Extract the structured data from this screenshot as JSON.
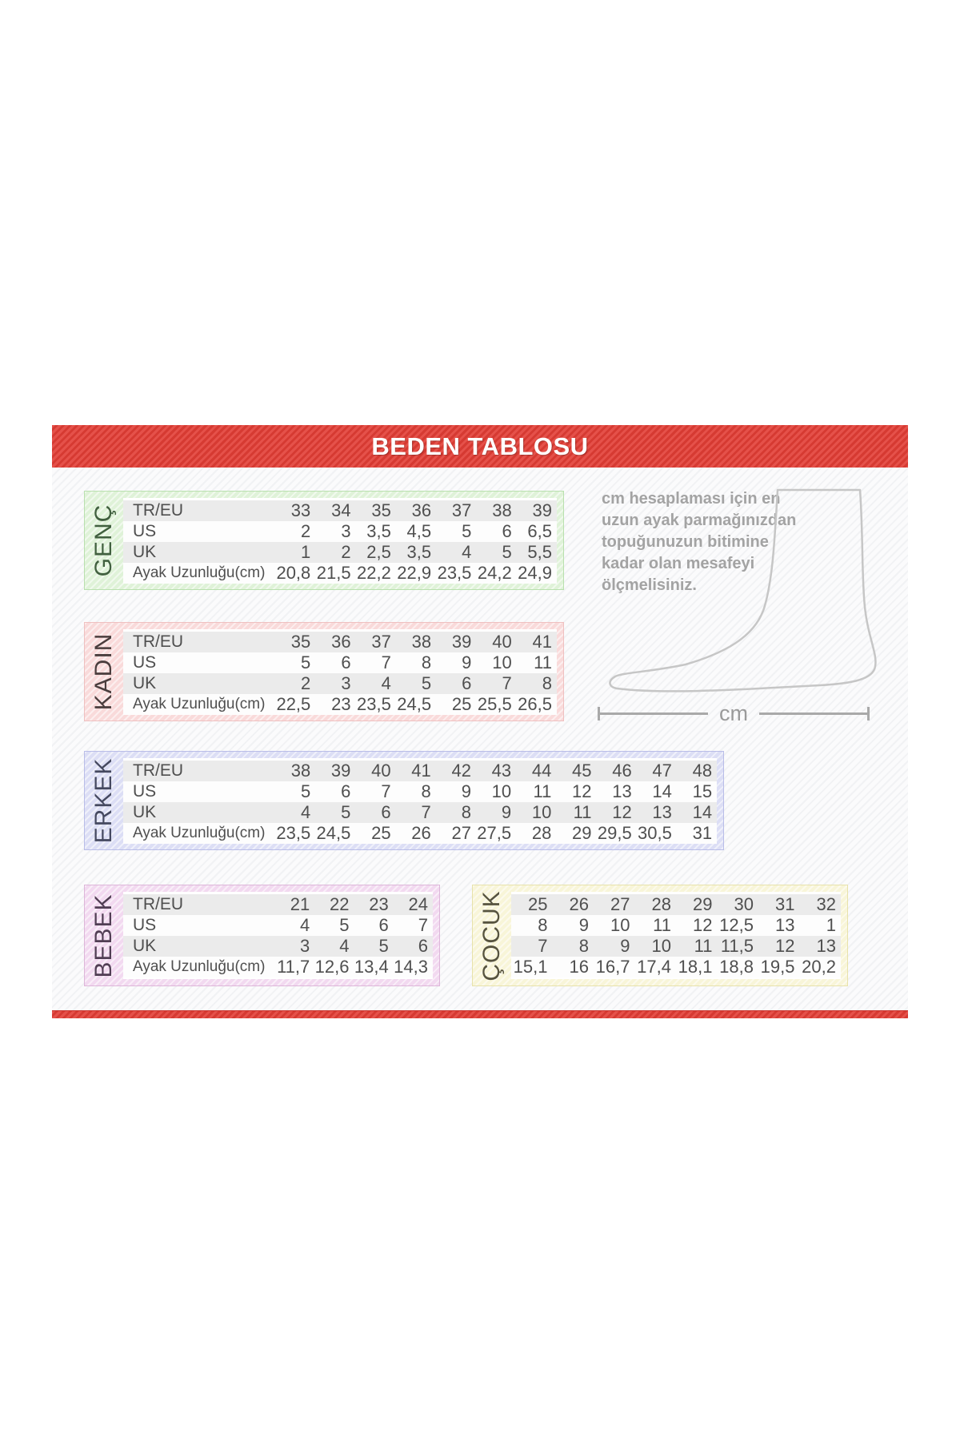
{
  "title": "BEDEN TABLOSU",
  "measure_label": "cm",
  "note_lines": [
    "cm hesaplaması için en",
    "uzun ayak parmağınızdan",
    "topuğunuzun bitimine",
    "kadar olan mesafeyi",
    "ölçmelisiniz."
  ],
  "row_labels": [
    "TR/EU",
    "US",
    "UK",
    "Ayak Uzunluğu(cm)"
  ],
  "colors": {
    "header_red": "#e23d35",
    "table_text": "#4f4f4f",
    "note_gray": "#a3a3a3",
    "foot_outline": "#c6c6c6"
  },
  "tables": [
    {
      "id": "genc",
      "label": "GENÇ",
      "has_row_labels": true,
      "band_color": "#dff2d8",
      "border_color": "#b9e0ae",
      "label_color": "#41603f",
      "rows": [
        [
          "33",
          "34",
          "35",
          "36",
          "37",
          "38",
          "39"
        ],
        [
          "2",
          "3",
          "3,5",
          "4,5",
          "5",
          "6",
          "6,5"
        ],
        [
          "1",
          "2",
          "2,5",
          "3,5",
          "4",
          "5",
          "5,5"
        ],
        [
          "20,8",
          "21,5",
          "22,2",
          "22,9",
          "23,5",
          "24,2",
          "24,9"
        ]
      ]
    },
    {
      "id": "kadin",
      "label": "KADIN",
      "has_row_labels": true,
      "band_color": "#f9dada",
      "border_color": "#efc0c0",
      "label_color": "#4a3d3d",
      "rows": [
        [
          "35",
          "36",
          "37",
          "38",
          "39",
          "40",
          "41"
        ],
        [
          "5",
          "6",
          "7",
          "8",
          "9",
          "10",
          "11"
        ],
        [
          "2",
          "3",
          "4",
          "5",
          "6",
          "7",
          "8"
        ],
        [
          "22,5",
          "23",
          "23,5",
          "24,5",
          "25",
          "25,5",
          "26,5"
        ]
      ]
    },
    {
      "id": "erkek",
      "label": "ERKEK",
      "has_row_labels": true,
      "band_color": "#dcdef5",
      "border_color": "#b9bde8",
      "label_color": "#454960",
      "rows": [
        [
          "38",
          "39",
          "40",
          "41",
          "42",
          "43",
          "44",
          "45",
          "46",
          "47",
          "48"
        ],
        [
          "5",
          "6",
          "7",
          "8",
          "9",
          "10",
          "11",
          "12",
          "13",
          "14",
          "15"
        ],
        [
          "4",
          "5",
          "6",
          "7",
          "8",
          "9",
          "10",
          "11",
          "12",
          "13",
          "14"
        ],
        [
          "23,5",
          "24,5",
          "25",
          "26",
          "27",
          "27,5",
          "28",
          "29",
          "29,5",
          "30,5",
          "31"
        ]
      ]
    },
    {
      "id": "bebek",
      "label": "BEBEK",
      "has_row_labels": true,
      "band_color": "#f2d9f0",
      "border_color": "#ddb6d9",
      "label_color": "#513e54",
      "rows": [
        [
          "21",
          "22",
          "23",
          "24"
        ],
        [
          "4",
          "5",
          "6",
          "7"
        ],
        [
          "3",
          "4",
          "5",
          "6"
        ],
        [
          "11,7",
          "12,6",
          "13,4",
          "14,3"
        ]
      ]
    },
    {
      "id": "cocuk",
      "label": "ÇOCUK",
      "has_row_labels": false,
      "band_color": "#f8f5d8",
      "border_color": "#e7e2ab",
      "label_color": "#56533f",
      "rows": [
        [
          "25",
          "26",
          "27",
          "28",
          "29",
          "30",
          "31",
          "32"
        ],
        [
          "8",
          "9",
          "10",
          "11",
          "12",
          "12,5",
          "13",
          "1"
        ],
        [
          "7",
          "8",
          "9",
          "10",
          "11",
          "11,5",
          "12",
          "13"
        ],
        [
          "15,1",
          "16",
          "16,7",
          "17,4",
          "18,1",
          "18,8",
          "19,5",
          "20,2"
        ]
      ]
    }
  ]
}
